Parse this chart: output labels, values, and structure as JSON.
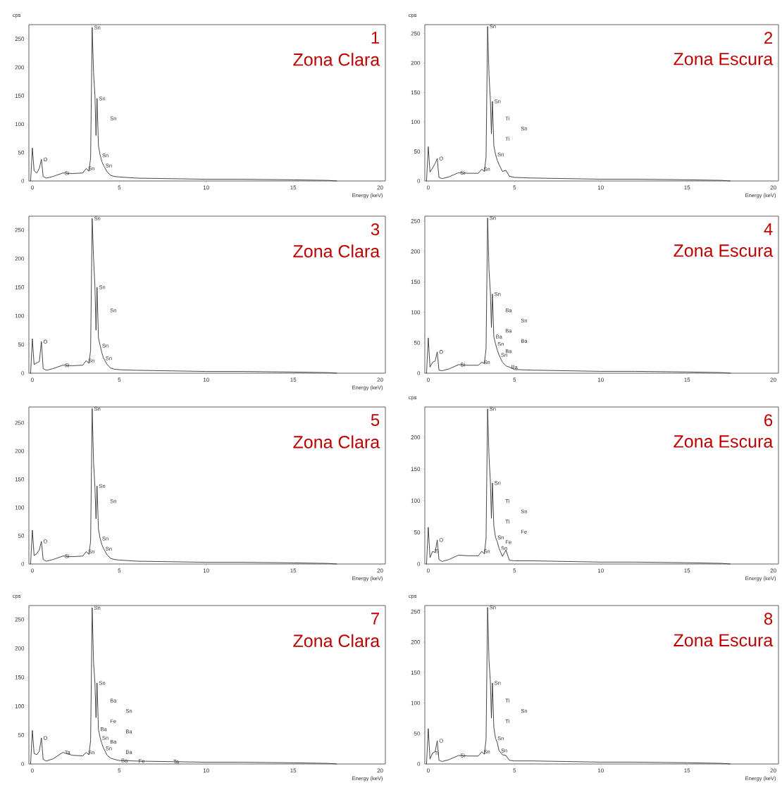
{
  "chart_data": [
    {
      "type": "line",
      "title": "1",
      "subtitle": "Zona Clara",
      "xlabel": "Energy (keV)",
      "ylabel": "cps",
      "color": "#333333",
      "xlim": [
        -0.2,
        20.3
      ],
      "ylim": [
        0,
        275
      ],
      "xticks": [
        0,
        5,
        10,
        15,
        20
      ],
      "yticks": [
        0,
        50,
        100,
        150,
        200,
        250
      ],
      "x": [
        -0.1,
        0,
        0.1,
        0.25,
        0.4,
        0.52,
        0.62,
        0.8,
        1.2,
        1.75,
        2.3,
        2.9,
        3.1,
        3.25,
        3.35,
        3.44,
        3.52,
        3.6,
        3.66,
        3.72,
        3.8,
        3.9,
        4.0,
        4.1,
        4.3,
        4.5,
        4.7,
        5.0,
        6.0,
        8.0,
        10.0,
        12.0,
        15.0,
        17.0,
        17.5
      ],
      "values": [
        0,
        58,
        18,
        14,
        22,
        38,
        8,
        5,
        8,
        14,
        13,
        14,
        22,
        17,
        40,
        270,
        190,
        150,
        80,
        145,
        62,
        45,
        34,
        27,
        16,
        10,
        8,
        7,
        5,
        4,
        3,
        3,
        2,
        1,
        0
      ],
      "annotations": [
        {
          "text": "Sn",
          "x": 3.44,
          "y": 270
        },
        {
          "text": "O",
          "x": 0.52,
          "y": 38
        },
        {
          "text": "Si",
          "x": 1.75,
          "y": 14
        },
        {
          "text": "Sn",
          "x": 3.1,
          "y": 22
        },
        {
          "text": "Sn",
          "x": 3.72,
          "y": 145
        },
        {
          "text": "Sn",
          "x": 3.9,
          "y": 45
        },
        {
          "text": "Sn",
          "x": 4.1,
          "y": 27
        },
        "Sn"
      ]
    },
    {
      "type": "line",
      "title": "2",
      "subtitle": "Zona Escura",
      "xlabel": "Energy (keV)",
      "ylabel": "cps",
      "color": "#333333",
      "xlim": [
        -0.2,
        20.3
      ],
      "ylim": [
        0,
        265
      ],
      "xticks": [
        0,
        5,
        10,
        15,
        20
      ],
      "yticks": [
        0,
        50,
        100,
        150,
        200,
        250
      ],
      "x": [
        -0.1,
        0,
        0.1,
        0.25,
        0.4,
        0.52,
        0.62,
        0.8,
        1.2,
        1.75,
        2.3,
        2.9,
        3.1,
        3.25,
        3.35,
        3.44,
        3.52,
        3.6,
        3.66,
        3.72,
        3.8,
        3.9,
        4.0,
        4.1,
        4.3,
        4.5,
        4.7,
        5.0,
        6.0,
        8.0,
        10.0,
        12.0,
        15.0,
        17.0,
        17.5
      ],
      "values": [
        0,
        58,
        15,
        22,
        30,
        38,
        6,
        4,
        7,
        14,
        13,
        13,
        20,
        16,
        40,
        262,
        180,
        137,
        80,
        135,
        60,
        45,
        35,
        28,
        16,
        18,
        8,
        6,
        5,
        4,
        3,
        3,
        2,
        1,
        0
      ],
      "annotations": [
        {
          "text": "Sn",
          "x": 3.44,
          "y": 262
        },
        {
          "text": "O",
          "x": 0.52,
          "y": 38
        },
        {
          "text": "Si",
          "x": 1.75,
          "y": 14
        },
        {
          "text": "Sn",
          "x": 3.1,
          "y": 20
        },
        {
          "text": "Sn",
          "x": 3.72,
          "y": 135
        },
        {
          "text": "Sn",
          "x": 3.9,
          "y": 45
        },
        "Ti",
        "Sn",
        "Ti"
      ]
    },
    {
      "type": "line",
      "title": "3",
      "subtitle": "Zona Clara",
      "xlabel": "Energy (keV)",
      "color": "#333333",
      "xlim": [
        -0.2,
        20.3
      ],
      "ylim": [
        0,
        274
      ],
      "xticks": [
        0,
        5,
        10,
        15,
        20
      ],
      "yticks": [
        0,
        50,
        100,
        150,
        200,
        250
      ],
      "x": [
        -0.1,
        0,
        0.1,
        0.25,
        0.4,
        0.52,
        0.62,
        0.8,
        1.2,
        1.75,
        2.3,
        2.9,
        3.1,
        3.25,
        3.35,
        3.44,
        3.52,
        3.6,
        3.66,
        3.72,
        3.8,
        3.9,
        4.0,
        4.1,
        4.3,
        4.5,
        4.7,
        5.0,
        6.0,
        8.0,
        10.0,
        12.0,
        15.0,
        17.0,
        17.5
      ],
      "values": [
        0,
        60,
        15,
        18,
        20,
        55,
        8,
        5,
        8,
        14,
        13,
        14,
        22,
        17,
        40,
        270,
        200,
        150,
        75,
        150,
        62,
        48,
        35,
        26,
        15,
        9,
        7,
        6,
        5,
        4,
        3,
        3,
        2,
        1,
        0
      ],
      "annotations": [
        {
          "text": "Sn",
          "x": 3.44,
          "y": 270
        },
        {
          "text": "O",
          "x": 0.52,
          "y": 55
        },
        {
          "text": "Si",
          "x": 1.75,
          "y": 14
        },
        {
          "text": "Sn",
          "x": 3.1,
          "y": 22
        },
        {
          "text": "Sn",
          "x": 3.72,
          "y": 150
        },
        {
          "text": "Sn",
          "x": 3.9,
          "y": 48
        },
        {
          "text": "Sn",
          "x": 4.1,
          "y": 26
        },
        "Sn"
      ]
    },
    {
      "type": "line",
      "title": "4",
      "subtitle": "Zona Escura",
      "color": "#333333",
      "xlim": [
        -0.2,
        20.3
      ],
      "ylim": [
        0,
        258
      ],
      "xticks": [
        0,
        5,
        10,
        15,
        20
      ],
      "yticks": [
        0,
        50,
        100,
        150,
        200,
        250
      ],
      "x": [
        -0.1,
        0,
        0.1,
        0.25,
        0.4,
        0.52,
        0.62,
        0.8,
        1.2,
        1.75,
        2.3,
        2.9,
        3.1,
        3.25,
        3.35,
        3.44,
        3.52,
        3.6,
        3.66,
        3.72,
        3.8,
        3.9,
        4.0,
        4.1,
        4.3,
        4.5,
        4.7,
        5.0,
        6.0,
        8.0,
        10.0,
        12.0,
        15.0,
        17.0,
        17.5
      ],
      "values": [
        0,
        58,
        10,
        18,
        20,
        35,
        5,
        4,
        7,
        14,
        13,
        13,
        18,
        16,
        40,
        255,
        170,
        133,
        75,
        130,
        60,
        48,
        38,
        30,
        18,
        12,
        10,
        6,
        5,
        4,
        3,
        3,
        2,
        1,
        0
      ],
      "annotations": [
        {
          "text": "Sn",
          "x": 3.44,
          "y": 255
        },
        {
          "text": "O",
          "x": 0.52,
          "y": 35
        },
        {
          "text": "Si",
          "x": 1.75,
          "y": 14
        },
        {
          "text": "Sn",
          "x": 3.1,
          "y": 18
        },
        {
          "text": "Sn",
          "x": 3.72,
          "y": 130
        },
        {
          "text": "Ba",
          "x": 3.8,
          "y": 60
        },
        {
          "text": "Sn",
          "x": 3.9,
          "y": 48
        },
        {
          "text": "Sn",
          "x": 4.1,
          "y": 30
        },
        {
          "text": "Ba",
          "x": 4.7,
          "y": 10
        },
        "Ba",
        "Sn",
        "Ba",
        "Ba",
        "Ba"
      ]
    },
    {
      "type": "line",
      "title": "5",
      "subtitle": "Zona Clara",
      "xlabel": "Energy (keV)",
      "color": "#333333",
      "xlim": [
        -0.2,
        20.3
      ],
      "ylim": [
        0,
        278
      ],
      "xticks": [
        0,
        5,
        10,
        15,
        20
      ],
      "yticks": [
        0,
        50,
        100,
        150,
        200,
        250
      ],
      "x": [
        -0.1,
        0,
        0.1,
        0.25,
        0.4,
        0.52,
        0.62,
        0.8,
        1.2,
        1.75,
        2.3,
        2.9,
        3.1,
        3.25,
        3.35,
        3.44,
        3.52,
        3.6,
        3.66,
        3.72,
        3.8,
        3.9,
        4.0,
        4.1,
        4.3,
        4.5,
        4.7,
        5.0,
        6.0,
        8.0,
        10.0,
        12.0,
        15.0,
        17.0,
        17.5
      ],
      "values": [
        0,
        60,
        15,
        18,
        25,
        40,
        8,
        5,
        8,
        14,
        13,
        14,
        22,
        17,
        40,
        275,
        180,
        135,
        80,
        138,
        62,
        45,
        34,
        27,
        16,
        10,
        8,
        7,
        5,
        4,
        3,
        3,
        2,
        1,
        0
      ],
      "annotations": [
        {
          "text": "Sn",
          "x": 3.44,
          "y": 275
        },
        {
          "text": "O",
          "x": 0.52,
          "y": 40
        },
        {
          "text": "Si",
          "x": 1.75,
          "y": 14
        },
        {
          "text": "Sn",
          "x": 3.1,
          "y": 22
        },
        {
          "text": "Sn",
          "x": 3.72,
          "y": 138
        },
        {
          "text": "Sn",
          "x": 3.9,
          "y": 45
        },
        {
          "text": "Sn",
          "x": 4.1,
          "y": 27
        },
        "Sn"
      ]
    },
    {
      "type": "line",
      "title": "6",
      "subtitle": "Zona Escura",
      "xlabel": "Energy (keV)",
      "ylabel": "cps",
      "color": "#333333",
      "xlim": [
        -0.2,
        20.3
      ],
      "ylim": [
        0,
        248
      ],
      "xticks": [
        0,
        5,
        10,
        15,
        20
      ],
      "yticks": [
        0,
        50,
        100,
        150,
        200
      ],
      "x": [
        -0.1,
        0,
        0.1,
        0.25,
        0.4,
        0.52,
        0.62,
        0.8,
        1.2,
        1.75,
        2.3,
        2.9,
        3.1,
        3.25,
        3.35,
        3.44,
        3.52,
        3.6,
        3.66,
        3.72,
        3.8,
        3.9,
        4.0,
        4.1,
        4.3,
        4.5,
        4.7,
        5.0,
        6.0,
        8.0,
        10.0,
        12.0,
        15.0,
        17.0,
        17.5
      ],
      "values": [
        0,
        58,
        10,
        20,
        18,
        38,
        7,
        4,
        7,
        14,
        13,
        13,
        20,
        16,
        40,
        245,
        170,
        130,
        72,
        128,
        60,
        42,
        35,
        25,
        12,
        22,
        6,
        5,
        5,
        4,
        3,
        3,
        2,
        1,
        0
      ],
      "annotations": [
        {
          "text": "Sn",
          "x": 3.44,
          "y": 245
        },
        {
          "text": "O",
          "x": 0.52,
          "y": 38
        },
        {
          "text": "Ti",
          "x": 0.25,
          "y": 20
        },
        {
          "text": "Sn",
          "x": 3.1,
          "y": 20
        },
        {
          "text": "Sn",
          "x": 3.72,
          "y": 128
        },
        {
          "text": "Sn",
          "x": 3.9,
          "y": 42
        },
        {
          "text": "Sn",
          "x": 4.1,
          "y": 25
        },
        "Ti",
        "Sn",
        "Ti",
        "Fe",
        "Fe"
      ]
    },
    {
      "type": "line",
      "title": "7",
      "subtitle": "Zona Clara",
      "xlabel": "Energy (keV)",
      "ylabel": "cps",
      "color": "#333333",
      "xlim": [
        -0.2,
        20.3
      ],
      "ylim": [
        0,
        274
      ],
      "xticks": [
        0,
        5,
        10,
        15,
        20
      ],
      "yticks": [
        0,
        50,
        100,
        150,
        200,
        250
      ],
      "x": [
        -0.1,
        0,
        0.1,
        0.25,
        0.4,
        0.52,
        0.62,
        0.8,
        1.2,
        1.75,
        2.3,
        2.9,
        3.1,
        3.25,
        3.35,
        3.44,
        3.52,
        3.6,
        3.66,
        3.72,
        3.8,
        3.9,
        4.0,
        4.1,
        4.3,
        4.5,
        4.7,
        5.0,
        6.0,
        8.0,
        10.0,
        12.0,
        15.0,
        17.0,
        17.5
      ],
      "values": [
        0,
        58,
        18,
        16,
        22,
        45,
        8,
        5,
        9,
        20,
        15,
        14,
        20,
        16,
        40,
        270,
        175,
        140,
        80,
        140,
        60,
        45,
        35,
        27,
        15,
        10,
        8,
        6,
        5,
        4,
        3,
        3,
        2,
        1,
        0
      ],
      "annotations": [
        {
          "text": "Sn",
          "x": 3.44,
          "y": 270
        },
        {
          "text": "O",
          "x": 0.52,
          "y": 45
        },
        {
          "text": "Ta",
          "x": 1.75,
          "y": 20
        },
        {
          "text": "Sn",
          "x": 3.1,
          "y": 20
        },
        {
          "text": "Sn",
          "x": 3.72,
          "y": 140
        },
        {
          "text": "Ba",
          "x": 3.8,
          "y": 60
        },
        {
          "text": "Sn",
          "x": 3.9,
          "y": 45
        },
        {
          "text": "Sn",
          "x": 4.1,
          "y": 27
        },
        {
          "text": "Ba",
          "x": 5.0,
          "y": 6
        },
        {
          "text": "Fe",
          "x": 6.0,
          "y": 5
        },
        {
          "text": "Ta",
          "x": 8.0,
          "y": 4
        },
        "Ba",
        "Sn",
        "Fe",
        "Ba",
        "Ba",
        "Ba"
      ]
    },
    {
      "type": "line",
      "title": "8",
      "subtitle": "Zona Escura",
      "xlabel": "Energy (keV)",
      "ylabel": "cps",
      "color": "#333333",
      "xlim": [
        -0.2,
        20.3
      ],
      "ylim": [
        0,
        260
      ],
      "xticks": [
        0,
        5,
        10,
        15,
        20
      ],
      "yticks": [
        0,
        50,
        100,
        150,
        200,
        250
      ],
      "x": [
        -0.1,
        0,
        0.1,
        0.25,
        0.4,
        0.52,
        0.62,
        0.8,
        1.2,
        1.75,
        2.3,
        2.9,
        3.1,
        3.25,
        3.35,
        3.44,
        3.52,
        3.6,
        3.66,
        3.72,
        3.8,
        3.9,
        4.0,
        4.1,
        4.3,
        4.5,
        4.7,
        5.0,
        6.0,
        8.0,
        10.0,
        12.0,
        15.0,
        17.0,
        17.5
      ],
      "values": [
        0,
        58,
        8,
        18,
        20,
        38,
        6,
        4,
        7,
        14,
        13,
        13,
        20,
        16,
        40,
        257,
        170,
        135,
        75,
        133,
        60,
        42,
        35,
        22,
        15,
        14,
        6,
        5,
        5,
        4,
        3,
        3,
        2,
        1,
        0
      ],
      "annotations": [
        {
          "text": "Sn",
          "x": 3.44,
          "y": 257
        },
        {
          "text": "O",
          "x": 0.52,
          "y": 38
        },
        {
          "text": "Ti",
          "x": 0.25,
          "y": 18
        },
        {
          "text": "Si",
          "x": 1.75,
          "y": 14
        },
        {
          "text": "Sn",
          "x": 3.1,
          "y": 20
        },
        {
          "text": "Sn",
          "x": 3.72,
          "y": 133
        },
        {
          "text": "Sn",
          "x": 3.9,
          "y": 42
        },
        {
          "text": "Sn",
          "x": 4.1,
          "y": 22
        },
        "Ti",
        "Sn",
        "Ti"
      ]
    }
  ]
}
